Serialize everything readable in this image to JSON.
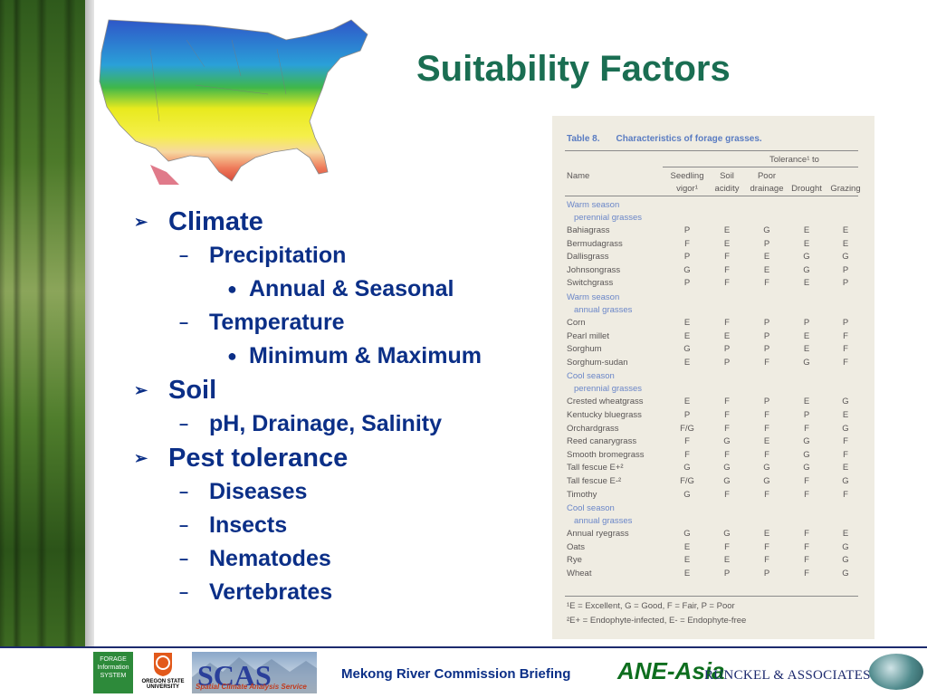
{
  "title": "Suitability Factors",
  "colors": {
    "title": "#1a6e52",
    "bullet_text": "#0b2f87",
    "table_heading": "#5a7cc2"
  },
  "bullets": [
    {
      "level": 1,
      "text": "Climate",
      "marker": "arrow"
    },
    {
      "level": 2,
      "text": "Precipitation",
      "marker": "dash"
    },
    {
      "level": 3,
      "text": "Annual & Seasonal",
      "marker": "dot"
    },
    {
      "level": 2,
      "text": "Temperature",
      "marker": "dash"
    },
    {
      "level": 3,
      "text": "Minimum & Maximum",
      "marker": "dot"
    },
    {
      "level": 1,
      "text": "Soil",
      "marker": "arrow"
    },
    {
      "level": 2,
      "text": "pH, Drainage, Salinity",
      "marker": "dash"
    },
    {
      "level": 1,
      "text": "Pest tolerance",
      "marker": "arrow"
    },
    {
      "level": 2,
      "text": "Diseases",
      "marker": "dash"
    },
    {
      "level": 2,
      "text": "Insects",
      "marker": "dash"
    },
    {
      "level": 2,
      "text": "Nematodes",
      "marker": "dash"
    },
    {
      "level": 2,
      "text": "Vertebrates",
      "marker": "dash"
    }
  ],
  "table": {
    "label": "Table 8.",
    "caption": "Characteristics of forage grasses.",
    "tolerance_header": "Tolerance¹ to",
    "name_header": "Name",
    "columns": [
      {
        "line1": "Seedling",
        "line2": "vigor¹"
      },
      {
        "line1": "Soil",
        "line2": "acidity"
      },
      {
        "line1": "Poor",
        "line2": "drainage"
      },
      {
        "line1": "",
        "line2": "Drought"
      },
      {
        "line1": "",
        "line2": "Grazing"
      }
    ],
    "sections": [
      {
        "line1": "Warm season",
        "line2": "perennial grasses",
        "rows": [
          {
            "name": "Bahiagrass",
            "values": [
              "P",
              "E",
              "G",
              "E",
              "E"
            ]
          },
          {
            "name": "Bermudagrass",
            "values": [
              "F",
              "E",
              "P",
              "E",
              "E"
            ]
          },
          {
            "name": "Dallisgrass",
            "values": [
              "P",
              "F",
              "E",
              "G",
              "G"
            ]
          },
          {
            "name": "Johnsongrass",
            "values": [
              "G",
              "F",
              "E",
              "G",
              "P"
            ]
          },
          {
            "name": "Switchgrass",
            "values": [
              "P",
              "F",
              "F",
              "E",
              "P"
            ]
          }
        ]
      },
      {
        "line1": "Warm season",
        "line2": "annual grasses",
        "rows": [
          {
            "name": "Corn",
            "values": [
              "E",
              "F",
              "P",
              "P",
              "P"
            ]
          },
          {
            "name": "Pearl millet",
            "values": [
              "E",
              "E",
              "P",
              "E",
              "F"
            ]
          },
          {
            "name": "Sorghum",
            "values": [
              "G",
              "P",
              "P",
              "E",
              "F"
            ]
          },
          {
            "name": "Sorghum-sudan",
            "values": [
              "E",
              "P",
              "F",
              "G",
              "F"
            ]
          }
        ]
      },
      {
        "line1": "Cool season",
        "line2": "perennial grasses",
        "rows": [
          {
            "name": "Crested wheatgrass",
            "values": [
              "E",
              "F",
              "P",
              "E",
              "G"
            ]
          },
          {
            "name": "Kentucky bluegrass",
            "values": [
              "P",
              "F",
              "F",
              "P",
              "E"
            ]
          },
          {
            "name": "Orchardgrass",
            "values": [
              "F/G",
              "F",
              "F",
              "F",
              "G"
            ]
          },
          {
            "name": "Reed canarygrass",
            "values": [
              "F",
              "G",
              "E",
              "G",
              "F"
            ]
          },
          {
            "name": "Smooth bromegrass",
            "values": [
              "F",
              "F",
              "F",
              "G",
              "F"
            ]
          },
          {
            "name": "Tall fescue E+²",
            "values": [
              "G",
              "G",
              "G",
              "G",
              "E"
            ]
          },
          {
            "name": "Tall fescue E-²",
            "values": [
              "F/G",
              "G",
              "G",
              "F",
              "G"
            ]
          },
          {
            "name": "Timothy",
            "values": [
              "G",
              "F",
              "F",
              "F",
              "F"
            ]
          }
        ]
      },
      {
        "line1": "Cool season",
        "line2": "annual grasses",
        "rows": [
          {
            "name": "Annual ryegrass",
            "values": [
              "G",
              "G",
              "E",
              "F",
              "E"
            ]
          },
          {
            "name": "Oats",
            "values": [
              "E",
              "F",
              "F",
              "F",
              "G"
            ]
          },
          {
            "name": "Rye",
            "values": [
              "E",
              "E",
              "F",
              "F",
              "G"
            ]
          },
          {
            "name": "Wheat",
            "values": [
              "E",
              "P",
              "P",
              "F",
              "G"
            ]
          }
        ]
      }
    ],
    "footnotes": [
      "¹E = Excellent, G = Good, F = Fair, P = Poor",
      "²E+ = Endophyte-infected, E- = Endophyte-free"
    ]
  },
  "footer": {
    "briefing": "Mekong River Commission Briefing",
    "ane_asia": "ANE-Asia",
    "runckel": "RUNCKEL & ASSOCIATES",
    "fis_logo": "FORAGE Information SYSTEM",
    "osu_logo": "OREGON STATE UNIVERSITY",
    "scas_logo": "SCAS",
    "scas_sub": "Spatial Climate Analysis Service"
  }
}
